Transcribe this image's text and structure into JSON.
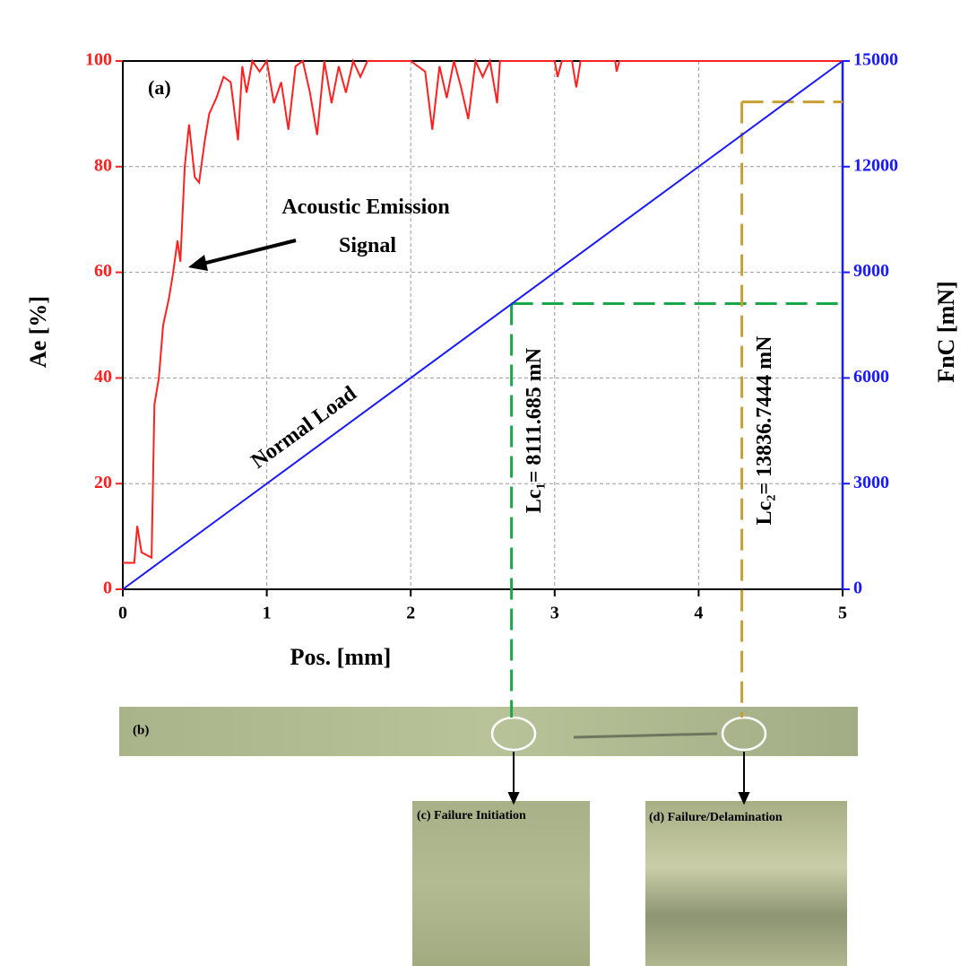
{
  "chart_data": {
    "type": "line",
    "panel_label": "(a)",
    "x_label": "Pos. [mm]",
    "y_label": "Ae [%]",
    "y2_label": "FnC [mN]",
    "xlim": [
      0,
      5
    ],
    "xticks": [
      0,
      1,
      2,
      3,
      4,
      5
    ],
    "ylim": [
      0,
      100
    ],
    "yticks": [
      0,
      20,
      40,
      60,
      80,
      100
    ],
    "y2lim": [
      0,
      15000
    ],
    "y2ticks": [
      0,
      3000,
      6000,
      9000,
      12000,
      15000
    ],
    "grid": true,
    "series": [
      {
        "name": "Acoustic Emission Signal",
        "color": "#ff2020",
        "x": [
          0,
          0.02,
          0.08,
          0.1,
          0.13,
          0.2,
          0.22,
          0.25,
          0.28,
          0.32,
          0.35,
          0.38,
          0.4,
          0.43,
          0.46,
          0.5,
          0.53,
          0.57,
          0.6,
          0.65,
          0.7,
          0.75,
          0.8,
          0.83,
          0.86,
          0.9,
          0.95,
          1.0,
          1.05,
          1.1,
          1.15,
          1.2,
          1.25,
          1.3,
          1.35,
          1.4,
          1.45,
          1.5,
          1.55,
          1.6,
          1.65,
          1.7,
          2.0,
          2.1,
          2.15,
          2.2,
          2.25,
          2.3,
          2.35,
          2.4,
          2.45,
          2.5,
          2.55,
          2.6,
          2.62,
          3.0,
          3.02,
          3.05,
          3.12,
          3.15,
          3.18,
          3.42,
          3.43,
          3.45,
          5.0
        ],
        "values": [
          5,
          5,
          5,
          12,
          7,
          6,
          35,
          40,
          50,
          55,
          60,
          66,
          62,
          80,
          88,
          78,
          77,
          85,
          90,
          93,
          97,
          96,
          85,
          99,
          94,
          100,
          98,
          100,
          92,
          96,
          87,
          99,
          100,
          94,
          86,
          100,
          92,
          99,
          94,
          100,
          97,
          100,
          100,
          98,
          87,
          99,
          93,
          100,
          95,
          89,
          100,
          97,
          100,
          92,
          100,
          100,
          97,
          100,
          100,
          95,
          100,
          100,
          98,
          100,
          100
        ]
      },
      {
        "name": "Normal Load",
        "color": "#1a1aff",
        "axis": "y2",
        "x": [
          0,
          5
        ],
        "values": [
          0,
          15000
        ]
      }
    ],
    "markers": [
      {
        "label": "Lc₁= 8111.685 mN",
        "x": 2.7,
        "y": 8111.685,
        "color": "#1aa64a"
      },
      {
        "label": "Lc₂= 13836.7444 mN",
        "x": 4.3,
        "y": 13836.7444,
        "color": "#c8a032"
      }
    ]
  },
  "images": {
    "strip": "(b)",
    "initiation": "(c) Failure Initiation",
    "delamination": "(d) Failure/Delamination"
  }
}
